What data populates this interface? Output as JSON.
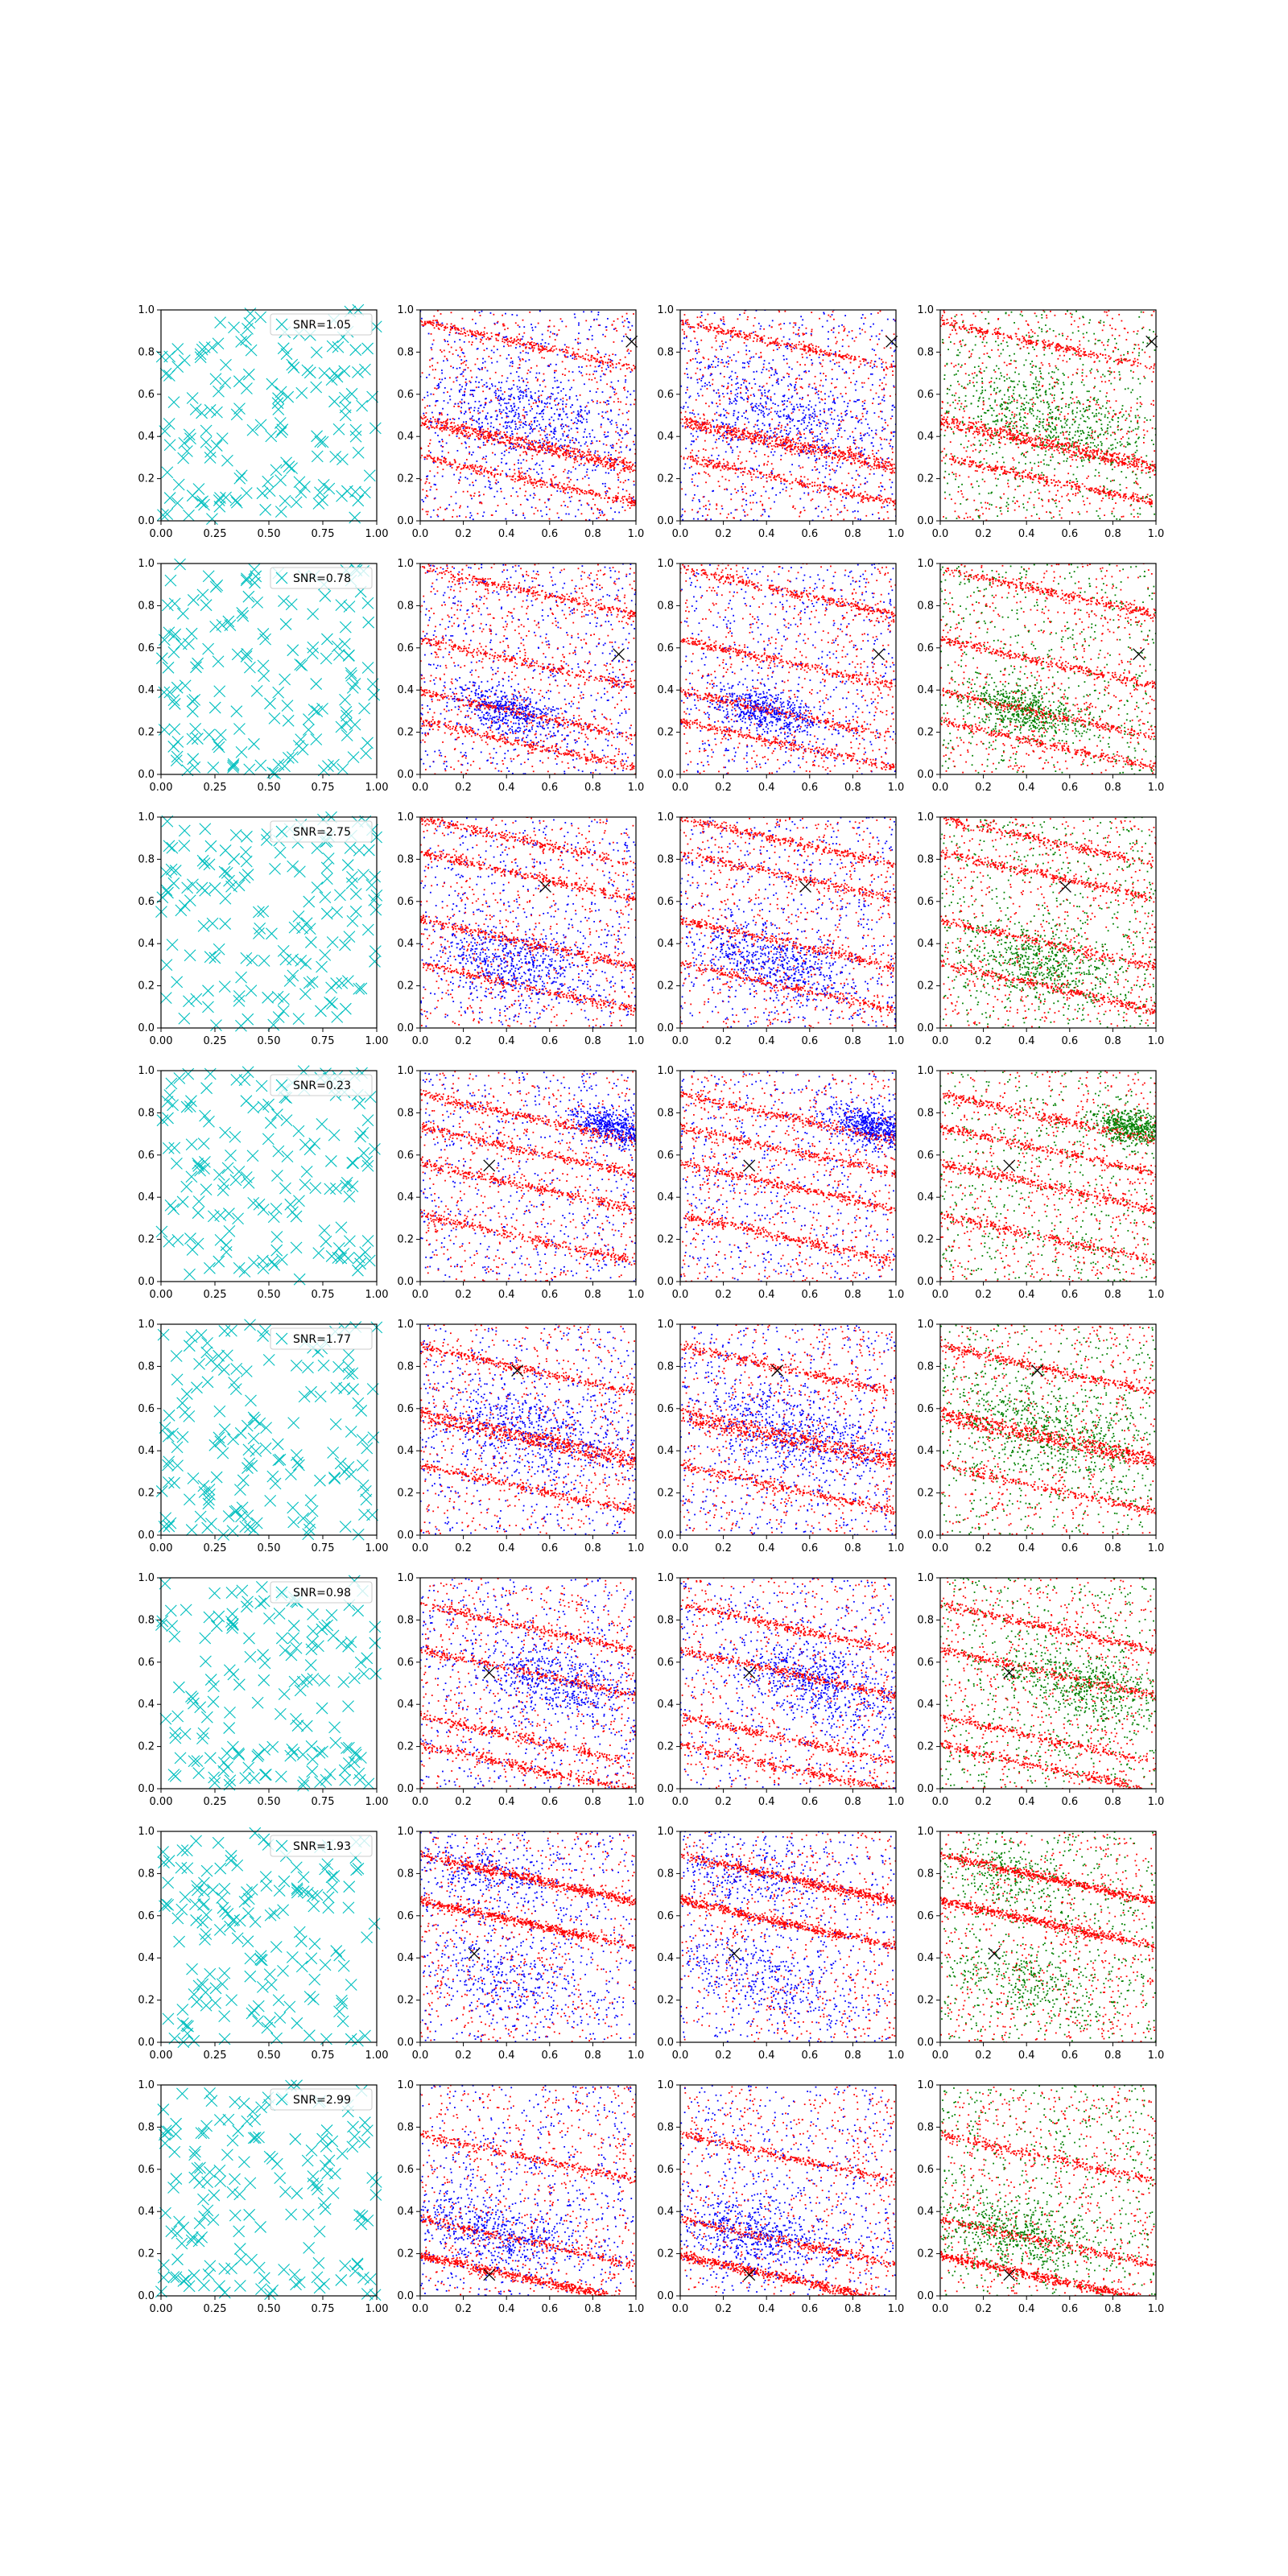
{
  "figure": {
    "rows": 8,
    "cols": 4
  },
  "colors": {
    "cyan": "#00bfbf",
    "red": "#ff0000",
    "blue": "#0000ff",
    "green": "#008000",
    "black": "#000000"
  },
  "chart_data": {
    "type": "scatter",
    "xlim": [
      0,
      1
    ],
    "ylim": [
      0,
      1
    ],
    "col0_xticks": [
      "0.00",
      "0.25",
      "0.50",
      "0.75",
      "1.00"
    ],
    "col0_yticks": [
      "0.0",
      "0.2",
      "0.4",
      "0.6",
      "0.8",
      "1.0"
    ],
    "other_xticks": [
      "0.0",
      "0.2",
      "0.4",
      "0.6",
      "0.8",
      "1.0"
    ],
    "other_yticks": [
      "0.0",
      "0.2",
      "0.4",
      "0.6",
      "0.8",
      "1.0"
    ],
    "marker_x_points_per_panel": 160,
    "scatter_points_per_panel": 3000,
    "rows": [
      {
        "snr_label": "SNR=1.05",
        "target": [
          0.98,
          0.85
        ],
        "streaks": [
          [
            0.2,
            0.9,
            0.2
          ],
          [
            0.3,
            0.42,
            0.15
          ],
          [
            0.5,
            0.35,
            0.12
          ],
          [
            0.7,
            0.15,
            0.12
          ]
        ],
        "blue_clusters": [
          [
            0.5,
            0.5,
            0.15
          ]
        ]
      },
      {
        "snr_label": "SNR=0.78",
        "target": [
          0.92,
          0.57
        ],
        "streaks": [
          [
            0.2,
            0.35,
            0.25
          ],
          [
            0.4,
            0.55,
            0.15
          ],
          [
            0.6,
            0.12,
            0.15
          ],
          [
            0.8,
            0.8,
            0.12
          ]
        ],
        "blue_clusters": [
          [
            0.4,
            0.3,
            0.08
          ]
        ]
      },
      {
        "snr_label": "SNR=2.75",
        "target": [
          0.58,
          0.67
        ],
        "streaks": [
          [
            0.2,
            0.95,
            0.2
          ],
          [
            0.5,
            0.4,
            0.15
          ],
          [
            0.6,
            0.7,
            0.12
          ],
          [
            0.7,
            0.15,
            0.12
          ]
        ],
        "blue_clusters": [
          [
            0.45,
            0.3,
            0.12
          ]
        ]
      },
      {
        "snr_label": "SNR=0.23",
        "target": [
          0.32,
          0.55
        ],
        "streaks": [
          [
            0.4,
            0.8,
            0.25
          ],
          [
            0.3,
            0.25,
            0.15
          ],
          [
            0.5,
            0.45,
            0.12
          ],
          [
            0.6,
            0.6,
            0.12
          ]
        ],
        "blue_clusters": [
          [
            0.9,
            0.73,
            0.06
          ]
        ]
      },
      {
        "snr_label": "SNR=1.77",
        "target": [
          0.45,
          0.78
        ],
        "streaks": [
          [
            0.3,
            0.83,
            0.25
          ],
          [
            0.4,
            0.5,
            0.15
          ],
          [
            0.6,
            0.2,
            0.12
          ],
          [
            0.7,
            0.4,
            0.12
          ]
        ],
        "blue_clusters": [
          [
            0.5,
            0.5,
            0.15
          ]
        ]
      },
      {
        "snr_label": "SNR=0.98",
        "target": [
          0.32,
          0.55
        ],
        "streaks": [
          [
            0.7,
            0.72,
            0.25
          ],
          [
            0.2,
            0.3,
            0.25
          ],
          [
            0.4,
            0.12,
            0.15
          ],
          [
            0.5,
            0.55,
            0.12
          ]
        ],
        "blue_clusters": [
          [
            0.65,
            0.5,
            0.12
          ]
        ]
      },
      {
        "snr_label": "SNR=1.93",
        "target": [
          0.25,
          0.42
        ],
        "streaks": [
          [
            0.85,
            0.7,
            0.25
          ],
          [
            0.1,
            0.65,
            0.2
          ]
        ],
        "blue_clusters": [
          [
            0.3,
            0.8,
            0.12
          ],
          [
            0.4,
            0.3,
            0.12
          ]
        ]
      },
      {
        "snr_label": "SNR=2.99",
        "target": [
          0.32,
          0.1
        ],
        "streaks": [
          [
            0.5,
            0.08,
            0.25
          ],
          [
            0.2,
            0.15,
            0.2
          ],
          [
            0.3,
            0.3,
            0.12
          ],
          [
            0.3,
            0.7,
            0.1
          ]
        ],
        "blue_clusters": [
          [
            0.35,
            0.3,
            0.12
          ]
        ]
      }
    ]
  }
}
